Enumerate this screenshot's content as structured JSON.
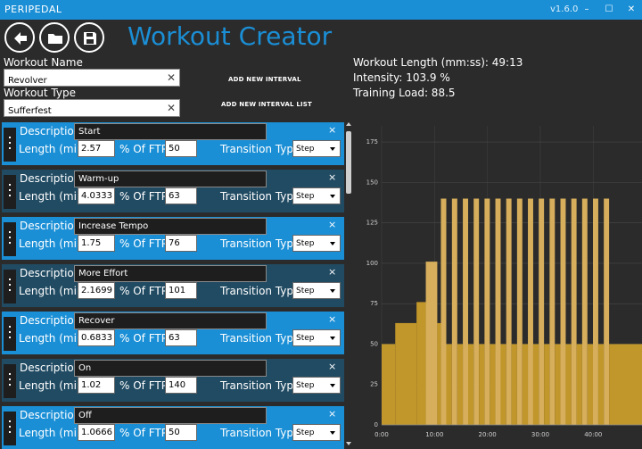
{
  "titlebar": {
    "app_name": "PERIPEDAL",
    "version": "v1.6.0",
    "minimize": "–",
    "maximize": "☐",
    "close": "✕"
  },
  "toolbar": {
    "back_icon": "arrow-left-icon",
    "open_icon": "folder-icon",
    "save_icon": "floppy-disk-icon"
  },
  "page_title": "Workout Creator",
  "form": {
    "workout_name_label": "Workout Name",
    "workout_name_value": "Revolver",
    "workout_type_label": "Workout Type",
    "workout_type_value": "Sufferfest",
    "add_interval_label": "ADD NEW INTERVAL",
    "add_interval_list_label": "ADD NEW INTERVAL LIST"
  },
  "stats": {
    "length": "Workout Length (mm:ss): 49:13",
    "intensity": "Intensity: 103.9 %",
    "training_load": "Training Load: 88.5"
  },
  "interval_labels": {
    "description": "Description",
    "length": "Length (min)",
    "ftp": "% Of FTP",
    "transition": "Transition Type",
    "remove": "×"
  },
  "intervals": [
    {
      "description": "Start",
      "length": "2.57",
      "ftp": "50",
      "transition": "Step"
    },
    {
      "description": "Warm-up",
      "length": "4.0333",
      "ftp": "63",
      "transition": "Step"
    },
    {
      "description": "Increase Tempo",
      "length": "1.75",
      "ftp": "76",
      "transition": "Step"
    },
    {
      "description": "More Effort",
      "length": "2.1699",
      "ftp": "101",
      "transition": "Step"
    },
    {
      "description": "Recover",
      "length": "0.6833",
      "ftp": "63",
      "transition": "Step"
    },
    {
      "description": "On",
      "length": "1.02",
      "ftp": "140",
      "transition": "Step"
    },
    {
      "description": "Off",
      "length": "1.0666",
      "ftp": "50",
      "transition": "Step"
    }
  ],
  "colors": {
    "accent": "#1b8fd6",
    "card_dark": "#214b63",
    "bar_fill": "#c1962a",
    "bar_light": "#d6ae5c"
  },
  "chart_data": {
    "type": "area",
    "xlabel": "",
    "ylabel": "",
    "xlim": [
      0,
      49.22
    ],
    "ylim": [
      0,
      185
    ],
    "y_ticks": [
      "0",
      "25",
      "50",
      "75",
      "100",
      "125",
      "150",
      "175"
    ],
    "x_ticks": [
      "0:00",
      "10:00",
      "20:00",
      "30:00",
      "40:00"
    ],
    "x_tick_values": [
      0,
      10,
      20,
      30,
      40
    ],
    "grid": true,
    "segments": [
      {
        "start": 0,
        "end": 2.57,
        "ftp": 50
      },
      {
        "start": 2.57,
        "end": 6.6,
        "ftp": 63
      },
      {
        "start": 6.6,
        "end": 8.35,
        "ftp": 76
      },
      {
        "start": 8.35,
        "end": 10.52,
        "ftp": 101
      },
      {
        "start": 10.52,
        "end": 11.2,
        "ftp": 63
      },
      {
        "start": 11.2,
        "end": 12.22,
        "ftp": 140
      },
      {
        "start": 12.22,
        "end": 13.29,
        "ftp": 50
      },
      {
        "start": 13.29,
        "end": 14.3,
        "ftp": 140
      },
      {
        "start": 14.3,
        "end": 15.35,
        "ftp": 50
      },
      {
        "start": 15.35,
        "end": 16.35,
        "ftp": 140
      },
      {
        "start": 16.35,
        "end": 17.4,
        "ftp": 50
      },
      {
        "start": 17.4,
        "end": 18.4,
        "ftp": 140
      },
      {
        "start": 18.4,
        "end": 19.45,
        "ftp": 50
      },
      {
        "start": 19.45,
        "end": 20.45,
        "ftp": 140
      },
      {
        "start": 20.45,
        "end": 21.5,
        "ftp": 50
      },
      {
        "start": 21.5,
        "end": 22.5,
        "ftp": 140
      },
      {
        "start": 22.5,
        "end": 23.55,
        "ftp": 50
      },
      {
        "start": 23.55,
        "end": 24.55,
        "ftp": 140
      },
      {
        "start": 24.55,
        "end": 25.6,
        "ftp": 50
      },
      {
        "start": 25.6,
        "end": 26.6,
        "ftp": 140
      },
      {
        "start": 26.6,
        "end": 27.65,
        "ftp": 50
      },
      {
        "start": 27.65,
        "end": 28.65,
        "ftp": 140
      },
      {
        "start": 28.65,
        "end": 29.7,
        "ftp": 50
      },
      {
        "start": 29.7,
        "end": 30.7,
        "ftp": 140
      },
      {
        "start": 30.7,
        "end": 31.75,
        "ftp": 50
      },
      {
        "start": 31.75,
        "end": 32.75,
        "ftp": 140
      },
      {
        "start": 32.75,
        "end": 33.8,
        "ftp": 50
      },
      {
        "start": 33.8,
        "end": 34.8,
        "ftp": 140
      },
      {
        "start": 34.8,
        "end": 35.85,
        "ftp": 50
      },
      {
        "start": 35.85,
        "end": 36.85,
        "ftp": 140
      },
      {
        "start": 36.85,
        "end": 37.9,
        "ftp": 50
      },
      {
        "start": 37.9,
        "end": 38.9,
        "ftp": 140
      },
      {
        "start": 38.9,
        "end": 39.95,
        "ftp": 50
      },
      {
        "start": 39.95,
        "end": 40.95,
        "ftp": 140
      },
      {
        "start": 40.95,
        "end": 42.0,
        "ftp": 50
      },
      {
        "start": 42.0,
        "end": 43.0,
        "ftp": 140
      },
      {
        "start": 43.0,
        "end": 49.22,
        "ftp": 50
      }
    ]
  }
}
